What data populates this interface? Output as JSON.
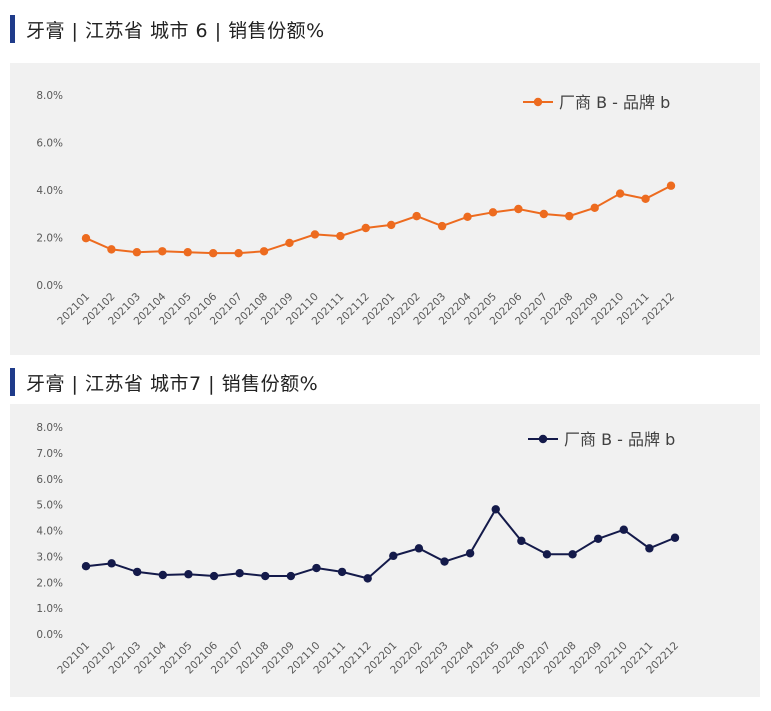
{
  "titles": [
    "牙膏 | 江苏省 城市 6 |  销售份额%",
    "牙膏 | 江苏省 城市7 | 销售份额%"
  ],
  "chart_data": [
    {
      "type": "line",
      "title": "牙膏 | 江苏省 城市 6 |  销售份额%",
      "categories": [
        "202101",
        "202102",
        "202103",
        "202104",
        "202105",
        "202106",
        "202107",
        "202108",
        "202109",
        "202110",
        "202111",
        "202112",
        "202201",
        "202202",
        "202203",
        "202204",
        "202205",
        "202206",
        "202207",
        "202208",
        "202209",
        "202210",
        "202211",
        "202212"
      ],
      "series": [
        {
          "name": "厂商 B - 品牌 b",
          "color": "#ed6b1f",
          "values": [
            1.97,
            1.5,
            1.38,
            1.42,
            1.38,
            1.34,
            1.34,
            1.42,
            1.77,
            2.13,
            2.06,
            2.4,
            2.53,
            2.9,
            2.48,
            2.87,
            3.06,
            3.2,
            2.99,
            2.9,
            3.25,
            3.85,
            3.63,
            4.18
          ]
        }
      ],
      "yticks": [
        "0.0%",
        "2.0%",
        "4.0%",
        "6.0%",
        "8.0%"
      ],
      "ylim": [
        0,
        8
      ],
      "ytick_step": 2,
      "legend": "top-right",
      "grid": false
    },
    {
      "type": "line",
      "title": "牙膏 | 江苏省 城市7 | 销售份额%",
      "categories": [
        "202101",
        "202102",
        "202103",
        "202104",
        "202105",
        "202106",
        "202107",
        "202108",
        "202109",
        "202110",
        "202111",
        "202112",
        "202201",
        "202202",
        "202203",
        "202204",
        "202205",
        "202206",
        "202207",
        "202208",
        "202209",
        "202210",
        "202211",
        "202212"
      ],
      "series": [
        {
          "name": "厂商 B - 品牌 b",
          "color": "#141a4a",
          "values": [
            2.62,
            2.73,
            2.4,
            2.28,
            2.31,
            2.24,
            2.35,
            2.24,
            2.24,
            2.55,
            2.4,
            2.15,
            3.02,
            3.31,
            2.8,
            3.12,
            4.82,
            3.6,
            3.08,
            3.08,
            3.68,
            4.03,
            3.31,
            3.72
          ]
        }
      ],
      "yticks": [
        "0.0%",
        "1.0%",
        "2.0%",
        "3.0%",
        "4.0%",
        "5.0%",
        "6.0%",
        "7.0%",
        "8.0%"
      ],
      "ylim": [
        0,
        8
      ],
      "ytick_step": 1,
      "legend": "top-right",
      "grid": false
    }
  ]
}
